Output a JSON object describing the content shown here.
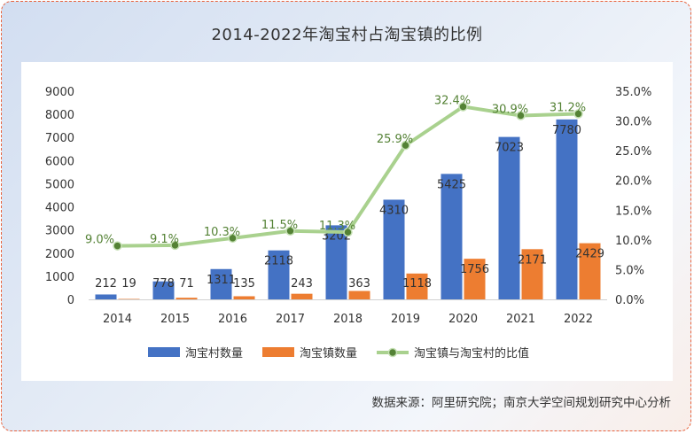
{
  "title": "2014-2022年淘宝村占淘宝镇的比例",
  "source": "数据来源：阿里研究院；南京大学空间规划研究中心分析",
  "colors": {
    "village": "#4472c4",
    "town": "#ed7d31",
    "ratio_line": "#a9d18e",
    "ratio_marker": "#548235",
    "ratio_label": "#548235"
  },
  "chart_data": {
    "type": "bar",
    "categories": [
      "2014",
      "2015",
      "2016",
      "2017",
      "2018",
      "2019",
      "2020",
      "2021",
      "2022"
    ],
    "series": [
      {
        "name": "淘宝村数量",
        "type": "bar",
        "axis": "left",
        "values": [
          212,
          778,
          1311,
          2118,
          3202,
          4310,
          5425,
          7023,
          7780
        ],
        "labels": [
          "212",
          "778",
          "1311",
          "2118",
          "3202",
          "4310",
          "5425",
          "7023",
          "7780"
        ]
      },
      {
        "name": "淘宝镇数量",
        "type": "bar",
        "axis": "left",
        "values": [
          19,
          71,
          135,
          243,
          363,
          1118,
          1756,
          2171,
          2429
        ],
        "labels": [
          "19",
          "71",
          "135",
          "243",
          "363",
          "1118",
          "1756",
          "2171",
          "2429"
        ]
      },
      {
        "name": "淘宝镇与淘宝村的比值",
        "type": "line",
        "axis": "right",
        "values": [
          9.0,
          9.1,
          10.3,
          11.5,
          11.3,
          25.9,
          32.4,
          30.9,
          31.2
        ],
        "labels": [
          "9.0%",
          "9.1%",
          "10.3%",
          "11.5%",
          "11.3%",
          "25.9%",
          "32.4%",
          "30.9%",
          "31.2%"
        ]
      }
    ],
    "y_left": {
      "min": 0,
      "max": 9000,
      "ticks": [
        "0",
        "1000",
        "2000",
        "3000",
        "4000",
        "5000",
        "6000",
        "7000",
        "8000",
        "9000"
      ]
    },
    "y_right": {
      "min": 0,
      "max": 35,
      "ticks": [
        "0.0%",
        "5.0%",
        "10.0%",
        "15.0%",
        "20.0%",
        "25.0%",
        "30.0%",
        "35.0%"
      ]
    },
    "legend_position": "bottom",
    "grid": false
  }
}
